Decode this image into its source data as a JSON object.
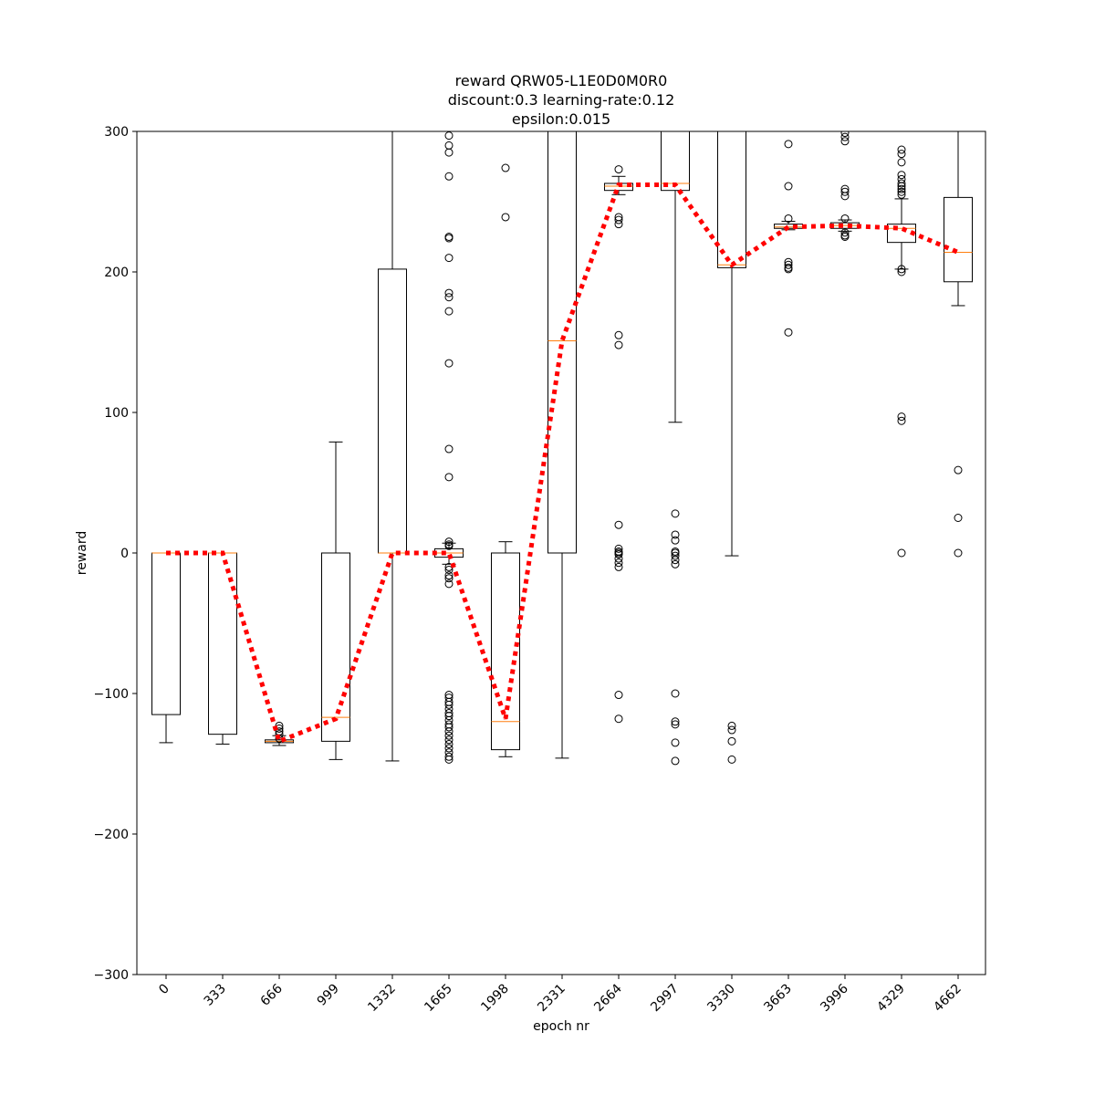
{
  "chart_data": {
    "type": "box",
    "title": [
      "reward QRW05-L1E0D0M0R0",
      "discount:0.3 learning-rate:0.12",
      "epsilon:0.015"
    ],
    "xlabel": "epoch nr",
    "ylabel": "reward",
    "ylim": [
      -300,
      300
    ],
    "yticks": [
      -300,
      -200,
      -100,
      0,
      100,
      200,
      300
    ],
    "grid": false,
    "categories": [
      "0",
      "333",
      "666",
      "999",
      "1332",
      "1665",
      "1998",
      "2331",
      "2664",
      "2997",
      "3330",
      "3663",
      "3996",
      "4329",
      "4662"
    ],
    "boxes": [
      {
        "q1": -115,
        "median": 0,
        "q3": 0,
        "whisker_low": -135,
        "whisker_high": 0,
        "outliers": []
      },
      {
        "q1": -129,
        "median": 0,
        "q3": 0,
        "whisker_low": -136,
        "whisker_high": 0,
        "outliers": []
      },
      {
        "q1": -135,
        "median": -134,
        "q3": -133,
        "whisker_low": -137,
        "whisker_high": -130,
        "outliers": [
          -123,
          -125,
          -127,
          -129,
          -132
        ]
      },
      {
        "q1": -134,
        "median": -117,
        "q3": 0,
        "whisker_low": -147,
        "whisker_high": 79,
        "outliers": []
      },
      {
        "q1": 0,
        "median": 0,
        "q3": 202,
        "whisker_low": -148,
        "whisker_high": 300,
        "outliers": []
      },
      {
        "q1": -3,
        "median": 0,
        "q3": 3,
        "whisker_low": -8,
        "whisker_high": 7,
        "outliers": [
          297,
          290,
          285,
          268,
          225,
          224,
          210,
          185,
          182,
          172,
          135,
          74,
          54,
          8,
          6,
          5,
          -10,
          -12,
          -16,
          -18,
          -22,
          -101,
          -103,
          -106,
          -108,
          -111,
          -114,
          -116,
          -119,
          -122,
          -124,
          -127,
          -130,
          -133,
          -136,
          -139,
          -142,
          -145,
          -147
        ]
      },
      {
        "q1": -140,
        "median": -120,
        "q3": 0,
        "whisker_low": -145,
        "whisker_high": 8,
        "outliers": [
          274,
          239
        ]
      },
      {
        "q1": 0,
        "median": 151,
        "q3": 300,
        "whisker_low": -146,
        "whisker_high": 300,
        "outliers": []
      },
      {
        "q1": 258,
        "median": 261,
        "q3": 263,
        "whisker_low": 255,
        "whisker_high": 268,
        "outliers": [
          273,
          239,
          237,
          234,
          155,
          148,
          20,
          3,
          1,
          0,
          -1,
          -4,
          -7,
          -10,
          -101,
          -118
        ]
      },
      {
        "q1": 258,
        "median": 263,
        "q3": 300,
        "whisker_low": 93,
        "whisker_high": 300,
        "outliers": [
          28,
          13,
          9,
          1,
          0,
          -2,
          -5,
          -8,
          -100,
          -120,
          -122,
          -135,
          -148
        ]
      },
      {
        "q1": 203,
        "median": 205,
        "q3": 300,
        "whisker_low": -2,
        "whisker_high": 300,
        "outliers": [
          -123,
          -126,
          -134,
          -147
        ]
      },
      {
        "q1": 231,
        "median": 232,
        "q3": 234,
        "whisker_low": 230,
        "whisker_high": 236,
        "outliers": [
          291,
          261,
          238,
          207,
          205,
          203,
          202,
          157
        ]
      },
      {
        "q1": 231,
        "median": 233,
        "q3": 235,
        "whisker_low": 229,
        "whisker_high": 237,
        "outliers": [
          299,
          296,
          293,
          259,
          257,
          254,
          238,
          228,
          226,
          225
        ]
      },
      {
        "q1": 221,
        "median": 231,
        "q3": 234,
        "whisker_low": 202,
        "whisker_high": 252,
        "outliers": [
          287,
          284,
          278,
          269,
          266,
          263,
          261,
          259,
          257,
          255,
          202,
          200,
          97,
          94,
          0
        ]
      },
      {
        "q1": 193,
        "median": 214,
        "q3": 253,
        "whisker_low": 176,
        "whisker_high": 300,
        "outliers": [
          59,
          25,
          0
        ]
      }
    ],
    "mean_line": {
      "values": [
        0,
        0,
        -134,
        -118,
        0,
        0,
        -118,
        151,
        262,
        262,
        205,
        232,
        233,
        231,
        214
      ],
      "color": "#ff0000",
      "style": "dotted"
    },
    "colors": {
      "box": "#000000",
      "median": "#ff7f0e",
      "mean_line": "#ff0000"
    }
  }
}
